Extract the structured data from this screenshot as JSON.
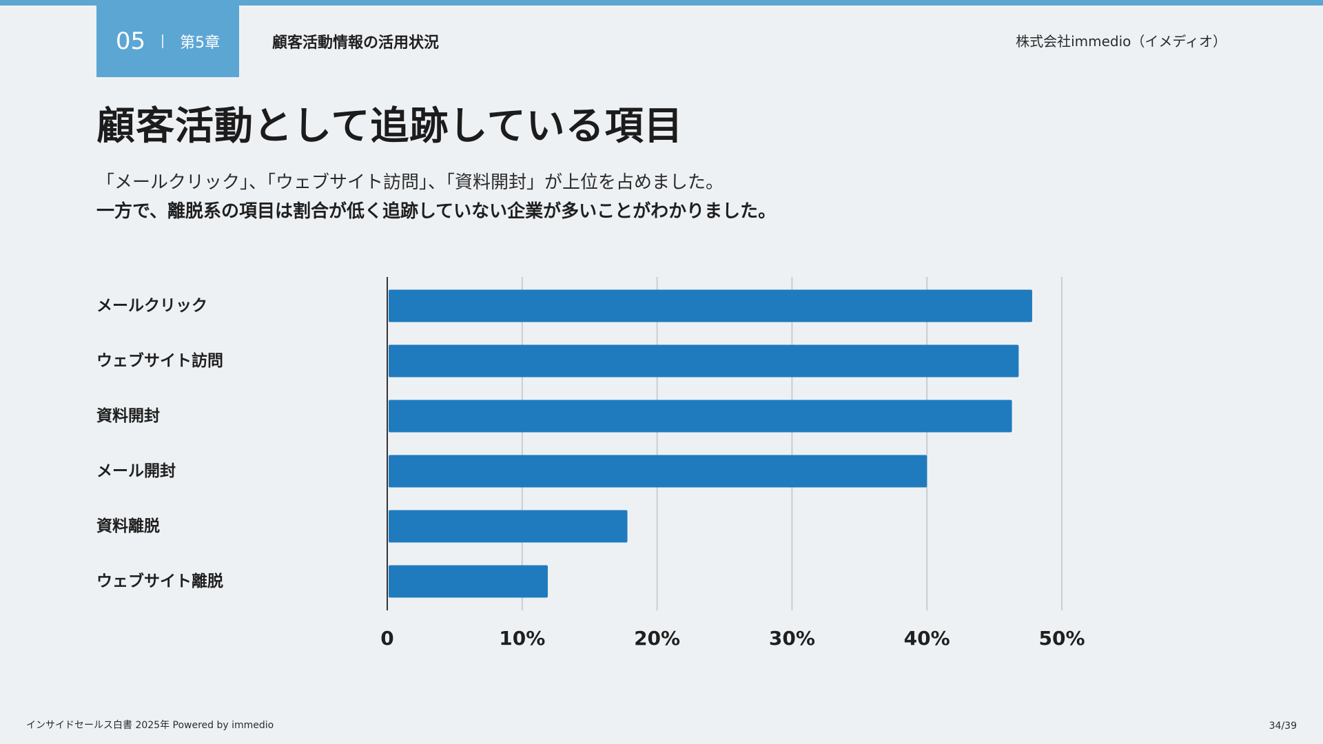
{
  "header": {
    "chapter_number": "05",
    "chapter_label": "第5章",
    "section_title": "顧客活動情報の活用状況",
    "company": "株式会社immedio（イメディオ）"
  },
  "main": {
    "title": "顧客活動として追跡している項目",
    "lead_line1": "「メールクリック」、「ウェブサイト訪問」、「資料開封」が上位を占めました。",
    "lead_line2": "一方で、離脱系の項目は割合が低く追跡していない企業が多いことがわかりました。"
  },
  "chart_data": {
    "type": "bar",
    "orientation": "horizontal",
    "categories": [
      "メールクリック",
      "ウェブサイト訪問",
      "資料開封",
      "メール開封",
      "資料離脱",
      "ウェブサイト離脱"
    ],
    "values": [
      47.8,
      46.8,
      46.3,
      40.0,
      17.8,
      11.9
    ],
    "xlim": [
      0,
      50
    ],
    "x_ticks": [
      0,
      10,
      20,
      30,
      40,
      50
    ],
    "x_tick_labels": [
      "0",
      "10%",
      "20%",
      "30%",
      "40%",
      "50%"
    ],
    "grid": true,
    "bar_color": "#1f7bbd",
    "title": "",
    "xlabel": "",
    "ylabel": ""
  },
  "footer": {
    "source": "インサイドセールス白書 2025年 Powered by immedio",
    "page": "34/39"
  },
  "colors": {
    "accent": "#5ca6d4",
    "background": "#eef1f4",
    "bar": "#1f7bbd"
  }
}
